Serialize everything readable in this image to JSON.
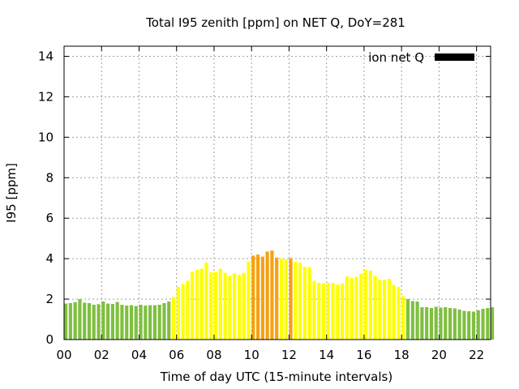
{
  "chart_data": {
    "type": "bar",
    "title": "Total I95 zenith [ppm] on NET Q, DoY=281",
    "xlabel": "Time of day UTC (15-minute intervals)",
    "ylabel": "I95 [ppm]",
    "xlim": [
      0,
      22.75
    ],
    "ylim": [
      0,
      14.5
    ],
    "x_ticks": [
      "00",
      "02",
      "04",
      "06",
      "08",
      "10",
      "12",
      "14",
      "16",
      "18",
      "20",
      "22"
    ],
    "y_ticks": [
      "0",
      "2",
      "4",
      "6",
      "8",
      "10",
      "12",
      "14"
    ],
    "grid": true,
    "legend_position": "top-right",
    "series": [
      {
        "name": "ion net Q",
        "color": "#000000"
      }
    ],
    "bar_width_hours": 0.18,
    "color_scale": [
      {
        "max": 2.0,
        "color": "#7fbf3f"
      },
      {
        "max": 4.0,
        "color": "#ffff00"
      },
      {
        "max": 99,
        "color": "#f5a111"
      }
    ],
    "values": [
      1.78,
      1.8,
      1.85,
      2.0,
      1.82,
      1.8,
      1.72,
      1.75,
      1.88,
      1.78,
      1.76,
      1.86,
      1.72,
      1.68,
      1.7,
      1.66,
      1.72,
      1.68,
      1.7,
      1.7,
      1.72,
      1.8,
      1.88,
      2.1,
      2.6,
      2.75,
      2.9,
      3.35,
      3.45,
      3.5,
      3.82,
      3.32,
      3.35,
      3.5,
      3.3,
      3.15,
      3.28,
      3.2,
      3.3,
      3.85,
      4.15,
      4.2,
      4.1,
      4.35,
      4.4,
      4.05,
      4.0,
      3.95,
      4.02,
      3.85,
      3.8,
      3.6,
      3.58,
      2.9,
      2.8,
      2.78,
      2.8,
      2.8,
      2.72,
      2.78,
      3.12,
      3.05,
      3.1,
      3.25,
      3.45,
      3.4,
      3.15,
      2.95,
      2.95,
      3.0,
      2.7,
      2.6,
      2.15,
      2.0,
      1.9,
      1.88,
      1.6,
      1.6,
      1.56,
      1.62,
      1.58,
      1.6,
      1.56,
      1.54,
      1.48,
      1.42,
      1.4,
      1.38,
      1.45,
      1.52,
      1.56,
      1.6
    ]
  }
}
